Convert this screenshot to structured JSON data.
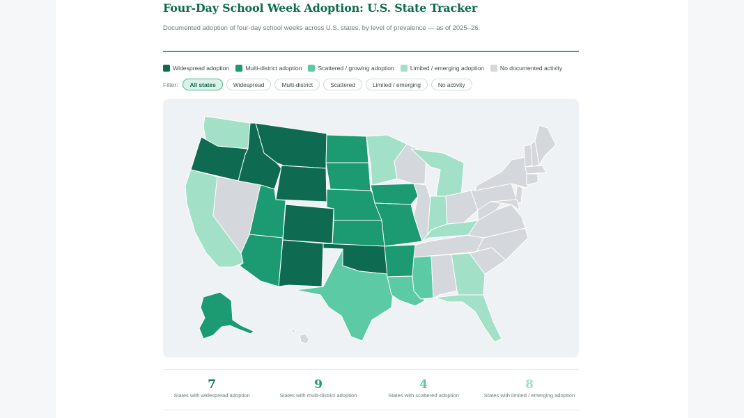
{
  "header": {
    "title": "Four-Day School Week Adoption: U.S. State Tracker",
    "subtitle": "Documented adoption of four-day school weeks across U.S. states, by level of prevalence — as of 2025–26."
  },
  "colors": {
    "widespread": "#0e6b52",
    "multi": "#1c9a72",
    "scattered": "#5ccaa4",
    "limited": "#a3e0c8",
    "none": "#d4d7dc"
  },
  "legend": [
    {
      "label": "Widespread adoption",
      "color": "#0e6b52"
    },
    {
      "label": "Multi-district adoption",
      "color": "#1c9a72"
    },
    {
      "label": "Scattered / growing adoption",
      "color": "#5ccaa4"
    },
    {
      "label": "Limited / emerging adoption",
      "color": "#a3e0c8"
    },
    {
      "label": "No documented activity",
      "color": "#d4d7dc"
    }
  ],
  "filters": {
    "label": "Filter:",
    "options": [
      "All states",
      "Widespread",
      "Multi-district",
      "Scattered",
      "Limited / emerging",
      "No activity"
    ],
    "selected": "All states"
  },
  "stats": [
    {
      "value": "7",
      "label": "States with widespread adoption",
      "color": "#0e6b52"
    },
    {
      "value": "9",
      "label": "States with multi-district adoption",
      "color": "#1c9a72"
    },
    {
      "value": "4",
      "label": "States with scattered adoption",
      "color": "#5ccaa4"
    },
    {
      "value": "8",
      "label": "States with limited / emerging adoption",
      "color": "#a3e0c8"
    }
  ]
}
